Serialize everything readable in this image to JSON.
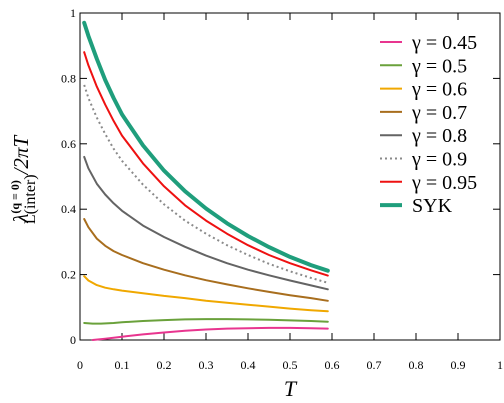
{
  "chart_data": {
    "type": "line",
    "xlabel": "T",
    "ylabel": "λ_L(inter)^(q = 0) / 2πT",
    "ylabel_parts": {
      "lambda": "λ",
      "superscript": "(q = 0)",
      "subscript": "L(inter)",
      "suffix": "/2πT"
    },
    "xlim": [
      0,
      1
    ],
    "ylim": [
      0,
      1
    ],
    "xticks": [
      "0",
      "0.1",
      "0.2",
      "0.3",
      "0.4",
      "0.5",
      "0.6",
      "0.7",
      "0.8",
      "0.9",
      "1"
    ],
    "yticks": [
      "0",
      "0.2",
      "0.4",
      "0.6",
      "0.8",
      "1"
    ],
    "legend_position": "top-right",
    "series": [
      {
        "name": "γ = 0.45",
        "color": "#e8358f",
        "dash": "solid",
        "width": 2,
        "x": [
          0.03,
          0.06,
          0.1,
          0.15,
          0.2,
          0.25,
          0.3,
          0.35,
          0.4,
          0.45,
          0.5,
          0.55,
          0.59
        ],
        "y": [
          0.0,
          0.004,
          0.01,
          0.017,
          0.023,
          0.028,
          0.032,
          0.035,
          0.036,
          0.037,
          0.037,
          0.036,
          0.035
        ]
      },
      {
        "name": "γ = 0.5",
        "color": "#6aa13b",
        "dash": "solid",
        "width": 2,
        "x": [
          0.01,
          0.03,
          0.05,
          0.08,
          0.1,
          0.15,
          0.2,
          0.25,
          0.3,
          0.35,
          0.4,
          0.45,
          0.5,
          0.55,
          0.59
        ],
        "y": [
          0.052,
          0.05,
          0.05,
          0.052,
          0.054,
          0.058,
          0.061,
          0.063,
          0.064,
          0.064,
          0.063,
          0.062,
          0.06,
          0.058,
          0.056
        ]
      },
      {
        "name": "γ = 0.6",
        "color": "#f0a800",
        "dash": "solid",
        "width": 2,
        "x": [
          0.01,
          0.02,
          0.04,
          0.06,
          0.08,
          0.1,
          0.15,
          0.2,
          0.25,
          0.3,
          0.35,
          0.4,
          0.45,
          0.5,
          0.55,
          0.59
        ],
        "y": [
          0.195,
          0.182,
          0.168,
          0.16,
          0.155,
          0.151,
          0.143,
          0.135,
          0.128,
          0.12,
          0.114,
          0.108,
          0.102,
          0.096,
          0.091,
          0.088
        ]
      },
      {
        "name": "γ = 0.7",
        "color": "#a86e1e",
        "dash": "solid",
        "width": 2,
        "x": [
          0.01,
          0.02,
          0.04,
          0.06,
          0.08,
          0.1,
          0.15,
          0.2,
          0.25,
          0.3,
          0.35,
          0.4,
          0.45,
          0.5,
          0.55,
          0.59
        ],
        "y": [
          0.37,
          0.345,
          0.31,
          0.288,
          0.272,
          0.26,
          0.235,
          0.215,
          0.198,
          0.183,
          0.17,
          0.158,
          0.147,
          0.137,
          0.128,
          0.12
        ]
      },
      {
        "name": "γ = 0.8",
        "color": "#646464",
        "dash": "solid",
        "width": 2,
        "x": [
          0.01,
          0.02,
          0.04,
          0.06,
          0.08,
          0.1,
          0.15,
          0.2,
          0.25,
          0.3,
          0.35,
          0.4,
          0.45,
          0.5,
          0.55,
          0.59
        ],
        "y": [
          0.56,
          0.525,
          0.478,
          0.445,
          0.418,
          0.395,
          0.35,
          0.315,
          0.285,
          0.258,
          0.235,
          0.215,
          0.198,
          0.182,
          0.167,
          0.155
        ]
      },
      {
        "name": "γ = 0.9",
        "color": "#8a8a8a",
        "dash": "dotted",
        "width": 2,
        "x": [
          0.01,
          0.02,
          0.04,
          0.06,
          0.08,
          0.1,
          0.15,
          0.2,
          0.25,
          0.3,
          0.35,
          0.4,
          0.45,
          0.5,
          0.55,
          0.59
        ],
        "y": [
          0.78,
          0.74,
          0.68,
          0.63,
          0.585,
          0.548,
          0.475,
          0.415,
          0.365,
          0.325,
          0.29,
          0.26,
          0.233,
          0.21,
          0.19,
          0.175
        ]
      },
      {
        "name": "γ = 0.95",
        "color": "#ee1111",
        "dash": "solid",
        "width": 2,
        "x": [
          0.01,
          0.02,
          0.04,
          0.06,
          0.08,
          0.1,
          0.15,
          0.2,
          0.25,
          0.3,
          0.35,
          0.4,
          0.45,
          0.5,
          0.55,
          0.59
        ],
        "y": [
          0.88,
          0.84,
          0.775,
          0.72,
          0.67,
          0.625,
          0.54,
          0.47,
          0.412,
          0.365,
          0.325,
          0.29,
          0.26,
          0.235,
          0.213,
          0.197
        ]
      },
      {
        "name": "SYK",
        "color": "#1f9e7c",
        "dash": "solid",
        "width": 4,
        "x": [
          0.01,
          0.02,
          0.04,
          0.06,
          0.08,
          0.1,
          0.15,
          0.2,
          0.25,
          0.3,
          0.35,
          0.4,
          0.45,
          0.5,
          0.55,
          0.59
        ],
        "y": [
          0.97,
          0.93,
          0.86,
          0.795,
          0.74,
          0.69,
          0.595,
          0.518,
          0.455,
          0.402,
          0.357,
          0.318,
          0.284,
          0.254,
          0.229,
          0.212
        ]
      }
    ]
  }
}
